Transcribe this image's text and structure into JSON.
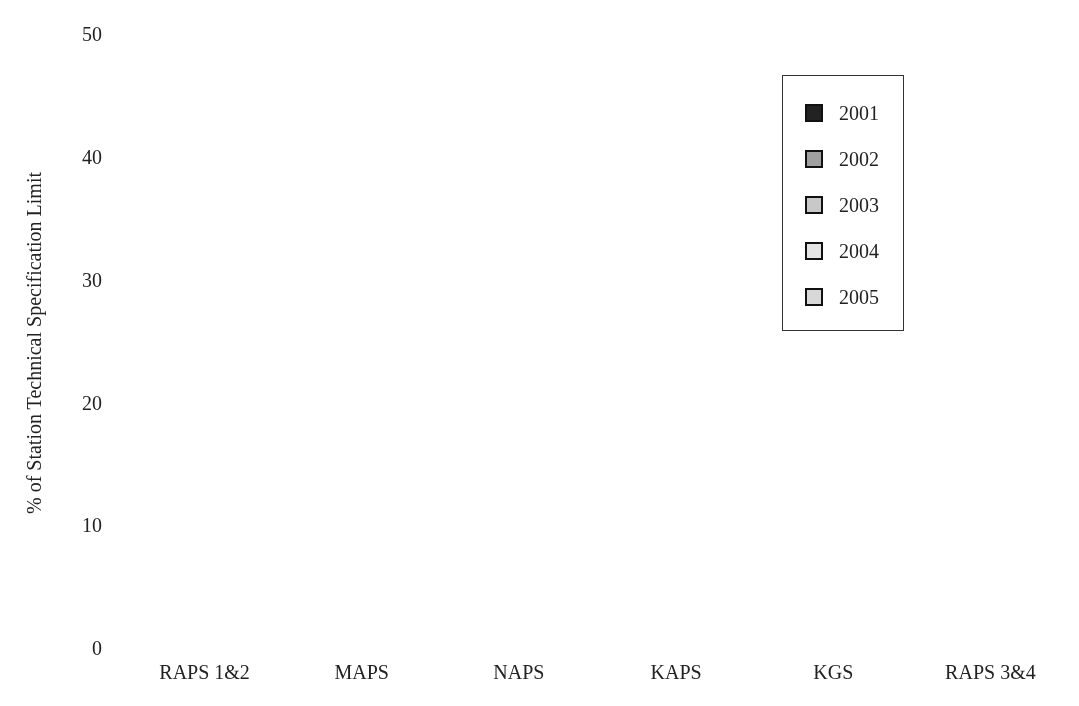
{
  "chart_data": {
    "type": "bar",
    "ylabel": "% of Station Technical Specification Limit",
    "categories": [
      "RAPS 1&2",
      "MAPS",
      "NAPS",
      "KAPS",
      "KGS",
      "RAPS 3&4"
    ],
    "series": [
      {
        "name": "2001",
        "color": "#222222",
        "values": [
          null,
          null,
          null,
          null,
          null,
          null
        ]
      },
      {
        "name": "2002",
        "color": "#a0a0a0",
        "values": [
          null,
          null,
          null,
          null,
          null,
          null
        ]
      },
      {
        "name": "2003",
        "color": "#c8c8c8",
        "values": [
          null,
          null,
          null,
          null,
          null,
          null
        ]
      },
      {
        "name": "2004",
        "color": "#e4e4e4",
        "values": [
          null,
          null,
          null,
          null,
          null,
          null
        ]
      },
      {
        "name": "2005",
        "color": "#d8d8d8",
        "values": [
          null,
          null,
          null,
          null,
          null,
          null
        ]
      }
    ],
    "ylim": [
      0,
      50
    ],
    "yticks": [
      0,
      10,
      20,
      30,
      40,
      50
    ],
    "grid": false,
    "legend": "top right"
  }
}
